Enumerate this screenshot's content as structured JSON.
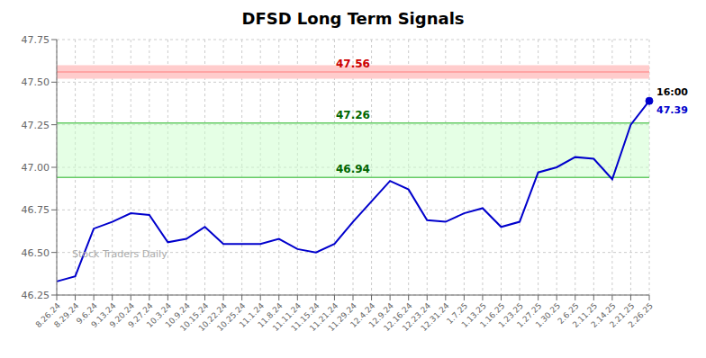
{
  "chart_data": {
    "type": "line",
    "title": "DFSD Long Term Signals",
    "categories": [
      "8.26.24",
      "8.29.24",
      "9.6.24",
      "9.13.24",
      "9.20.24",
      "9.27.24",
      "10.3.24",
      "10.9.24",
      "10.15.24",
      "10.22.24",
      "10.25.24",
      "11.1.24",
      "11.8.24",
      "11.11.24",
      "11.15.24",
      "11.21.24",
      "11.29.24",
      "12.4.24",
      "12.9.24",
      "12.16.24",
      "12.23.24",
      "12.31.24",
      "1.7.25",
      "1.13.25",
      "1.16.25",
      "1.23.25",
      "1.27.25",
      "1.30.25",
      "2.6.25",
      "2.11.25",
      "2.14.25",
      "2.21.25",
      "2.26.25"
    ],
    "values": [
      46.33,
      46.36,
      46.64,
      46.68,
      46.73,
      46.72,
      46.56,
      46.58,
      46.65,
      46.55,
      46.55,
      46.55,
      46.58,
      46.52,
      46.5,
      46.55,
      46.68,
      46.8,
      46.92,
      46.87,
      46.69,
      46.68,
      46.73,
      46.76,
      46.65,
      46.68,
      46.97,
      47.0,
      47.06,
      47.05,
      46.93,
      47.25,
      47.39
    ],
    "color": "#0000cc",
    "marker": "last",
    "ylim": [
      46.25,
      47.75
    ],
    "yticks": [
      46.25,
      {
        "value": 46.5,
        "label": "46.50"
      },
      46.75,
      {
        "value": 47.0,
        "label": "47.00"
      },
      47.25,
      {
        "value": 47.5,
        "label": "47.50"
      },
      47.75
    ],
    "grid": true,
    "reference_lines": [
      {
        "value": 47.56,
        "label": "47.56",
        "color": "#ff9999",
        "label_color": "#cc0000"
      },
      {
        "value": 47.26,
        "label": "47.26",
        "color": "#66cc66",
        "label_color": "#006600"
      },
      {
        "value": 46.94,
        "label": "46.94",
        "color": "#66cc66",
        "label_color": "#006600"
      }
    ],
    "bands": [
      {
        "from": 47.52,
        "to": 47.6,
        "color": "#ffcccc"
      },
      {
        "from": 46.94,
        "to": 47.26,
        "color": "#ccffcc"
      }
    ],
    "annotations": [
      {
        "text": "16:00",
        "category": "2.26.25",
        "y": 47.39,
        "color": "#000000"
      },
      {
        "text": "47.39",
        "category": "2.26.25",
        "y": 47.39,
        "color": "#0000cc"
      }
    ],
    "watermark": "Stock Traders Daily"
  }
}
